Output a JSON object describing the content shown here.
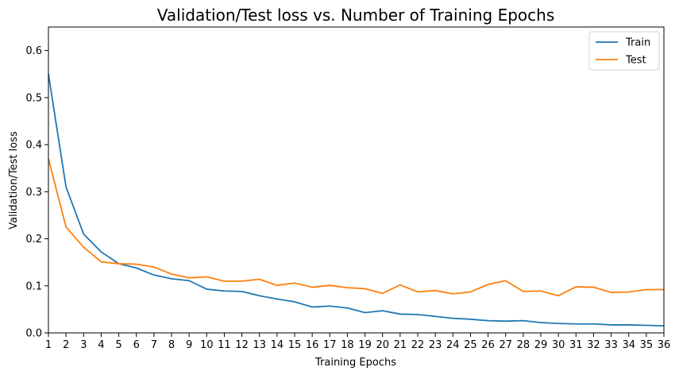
{
  "chart_data": {
    "type": "line",
    "title": "Validation/Test loss vs. Number of Training Epochs",
    "xlabel": "Training Epochs",
    "ylabel": "Validation/Test loss",
    "x": [
      1,
      2,
      3,
      4,
      5,
      6,
      7,
      8,
      9,
      10,
      11,
      12,
      13,
      14,
      15,
      16,
      17,
      18,
      19,
      20,
      21,
      22,
      23,
      24,
      25,
      26,
      27,
      28,
      29,
      30,
      31,
      32,
      33,
      34,
      35,
      36
    ],
    "xlim": [
      1,
      36
    ],
    "ylim": [
      0,
      0.65
    ],
    "yticks": [
      "0.0",
      "0.1",
      "0.2",
      "0.3",
      "0.4",
      "0.5",
      "0.6"
    ],
    "legend_position": "top-right",
    "grid": false,
    "series": [
      {
        "name": "Train",
        "color": "#1f77b4",
        "values": [
          0.55,
          0.31,
          0.21,
          0.172,
          0.147,
          0.138,
          0.123,
          0.115,
          0.111,
          0.093,
          0.089,
          0.088,
          0.079,
          0.072,
          0.066,
          0.055,
          0.057,
          0.053,
          0.043,
          0.047,
          0.04,
          0.039,
          0.035,
          0.031,
          0.029,
          0.026,
          0.025,
          0.026,
          0.022,
          0.02,
          0.019,
          0.019,
          0.017,
          0.017,
          0.016,
          0.015
        ]
      },
      {
        "name": "Test",
        "color": "#ff7f0e",
        "values": [
          0.37,
          0.225,
          0.182,
          0.151,
          0.147,
          0.146,
          0.14,
          0.125,
          0.117,
          0.119,
          0.11,
          0.11,
          0.114,
          0.101,
          0.106,
          0.097,
          0.101,
          0.096,
          0.094,
          0.084,
          0.102,
          0.087,
          0.09,
          0.083,
          0.087,
          0.103,
          0.111,
          0.088,
          0.089,
          0.079,
          0.098,
          0.097,
          0.086,
          0.087,
          0.092,
          0.092
        ]
      }
    ]
  }
}
